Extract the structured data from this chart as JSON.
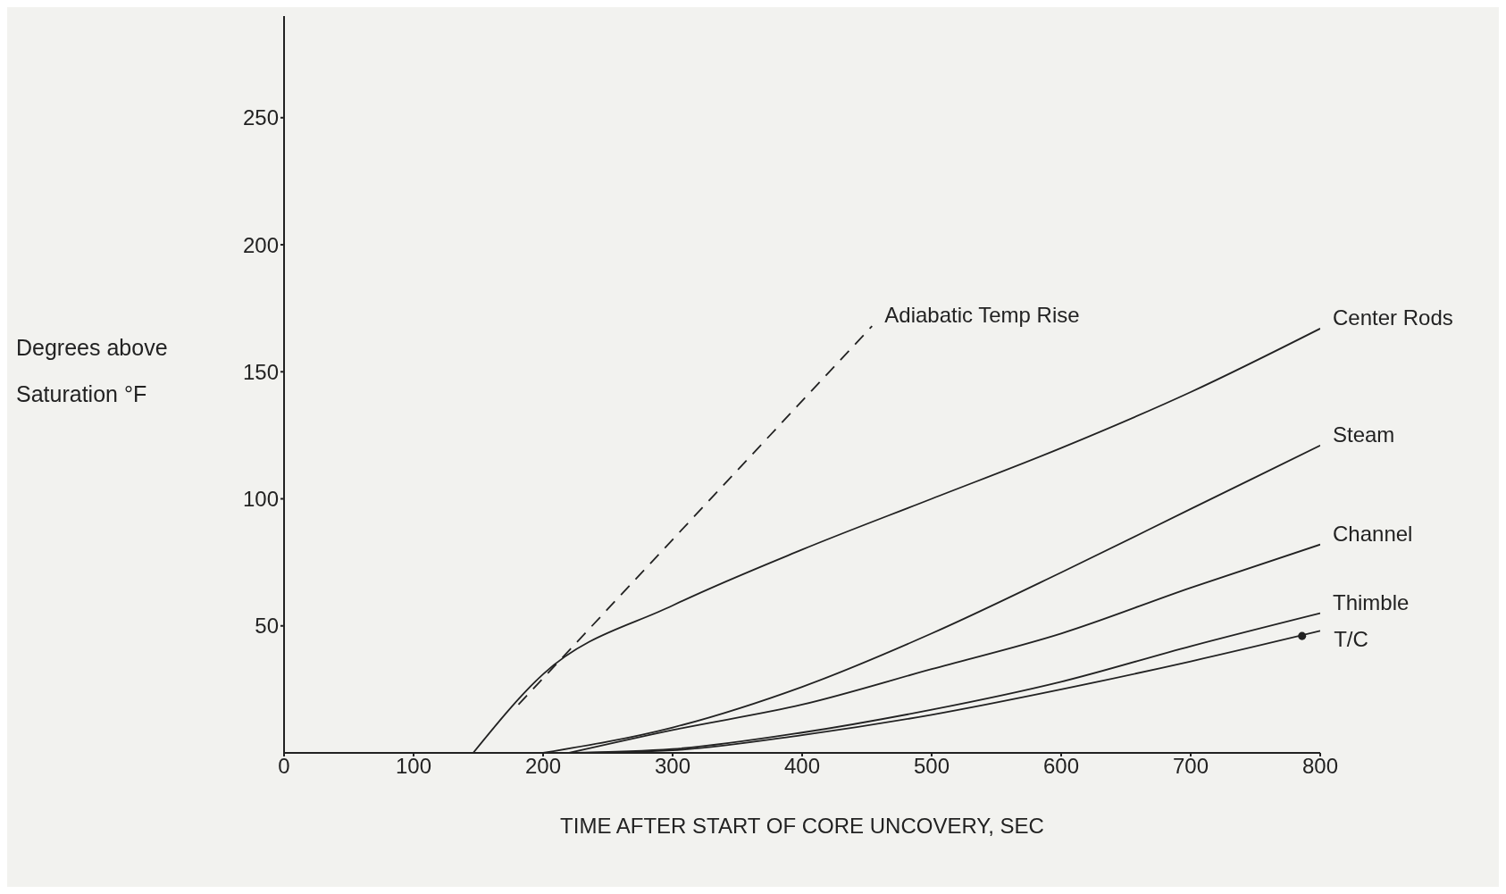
{
  "chart_data": {
    "type": "line",
    "xlabel": "TIME AFTER START OF CORE UNCOVERY, SEC",
    "ylabel": "Degrees above Saturation °F",
    "xlim": [
      0,
      800
    ],
    "xticks": [
      0,
      100,
      200,
      300,
      400,
      500,
      600,
      700,
      800
    ],
    "ylim": [
      0,
      290
    ],
    "yticks": [
      50,
      100,
      150,
      200,
      250
    ],
    "grid": false,
    "marker": "none",
    "series": [
      {
        "name": "Adiabatic Temp Rise",
        "color": "#222222",
        "line_style": "dashed",
        "x": [
          181,
          454
        ],
        "values": [
          19,
          168
        ]
      },
      {
        "name": "Center Rods",
        "color": "#222222",
        "x": [
          146,
          200,
          300,
          400,
          500,
          600,
          700,
          800
        ],
        "values": [
          0,
          31,
          58,
          80,
          100,
          120,
          142,
          167
        ]
      },
      {
        "name": "Steam",
        "color": "#222222",
        "x": [
          200,
          300,
          400,
          500,
          600,
          700,
          800
        ],
        "values": [
          0,
          10,
          26,
          47,
          71,
          96,
          121
        ]
      },
      {
        "name": "Channel",
        "color": "#222222",
        "x": [
          220,
          300,
          400,
          500,
          600,
          700,
          800
        ],
        "values": [
          0,
          9,
          19,
          33,
          47,
          65,
          82
        ]
      },
      {
        "name": "Thimble",
        "color": "#222222",
        "x": [
          220,
          300,
          400,
          500,
          600,
          700,
          800
        ],
        "values": [
          0,
          1.5,
          8,
          17,
          28,
          42,
          55
        ]
      },
      {
        "color": "#222222",
        "x": [
          230,
          300,
          400,
          500,
          600,
          700,
          800
        ],
        "values": [
          0,
          1,
          7,
          15,
          25,
          36,
          48
        ]
      },
      {
        "name": "T/C",
        "type": "scatter",
        "color": "#222222",
        "marker": "circle",
        "x": [
          786
        ],
        "values": [
          46
        ]
      }
    ]
  }
}
